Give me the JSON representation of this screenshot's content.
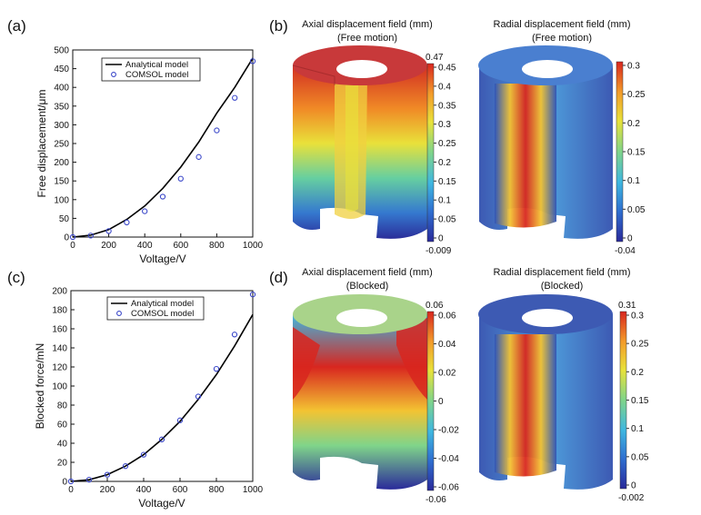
{
  "panel_labels": {
    "a": "(a)",
    "b": "(b)",
    "c": "(c)",
    "d": "(d)"
  },
  "colors": {
    "analytical": "#000000",
    "comsol": "#3a47c9",
    "top_axial_free": "#c8393a",
    "top_radial_free": "#4a7fd0",
    "top_axial_blocked": "#a9d38a",
    "top_radial_blocked": "#3d5ab3"
  },
  "colormap": [
    "#2a2a9a",
    "#2f6fd0",
    "#3fb7e0",
    "#7fd48a",
    "#e8e23a",
    "#f39c2a",
    "#d8261f"
  ],
  "fields": [
    {
      "title": "Axial displacement field (mm)",
      "subtitle": "(Free motion)",
      "max_label": "0.47",
      "min_label": "-0.009",
      "ticks": [
        "0.45",
        "0.4",
        "0.35",
        "0.3",
        "0.25",
        "0.2",
        "0.15",
        "0.1",
        "0.05",
        "0"
      ]
    },
    {
      "title": "Radial displacement field (mm)",
      "subtitle": "(Free motion)",
      "max_label": "",
      "min_label": "-0.04",
      "ticks": [
        "0.3",
        "0.25",
        "0.2",
        "0.15",
        "0.1",
        "0.05",
        "0"
      ]
    },
    {
      "title": "Axial displacement field (mm)",
      "subtitle": "(Blocked)",
      "max_label": "0.06",
      "min_label": "-0.06",
      "ticks": [
        "0.06",
        "0.04",
        "0.02",
        "0",
        "-0.02",
        "-0.04",
        "-0.06"
      ]
    },
    {
      "title": "Radial displacement field (mm)",
      "subtitle": "(Blocked)",
      "max_label": "0.31",
      "min_label": "-0.002",
      "ticks": [
        "0.3",
        "0.25",
        "0.2",
        "0.15",
        "0.1",
        "0.05",
        "0"
      ]
    }
  ],
  "chart_data": [
    {
      "type": "line",
      "title": "",
      "xlabel": "Voltage/V",
      "ylabel": "Free displacement/μm",
      "xlim": [
        0,
        1000
      ],
      "ylim": [
        0,
        500
      ],
      "xticks": [
        0,
        200,
        400,
        600,
        800,
        1000
      ],
      "yticks": [
        0,
        50,
        100,
        150,
        200,
        250,
        300,
        350,
        400,
        450,
        500
      ],
      "legend": "top-left",
      "series": [
        {
          "name": "Analytical model",
          "style": "line",
          "x": [
            0,
            100,
            200,
            300,
            400,
            500,
            600,
            700,
            800,
            900,
            1000
          ],
          "y": [
            0,
            5,
            20,
            47,
            83,
            130,
            187,
            254,
            331,
            400,
            478
          ]
        },
        {
          "name": "COMSOL model",
          "style": "markers",
          "x": [
            0,
            100,
            200,
            300,
            400,
            500,
            600,
            700,
            800,
            900,
            1000
          ],
          "y": [
            0,
            4,
            16,
            39,
            69,
            108,
            156,
            214,
            285,
            372,
            470
          ]
        }
      ]
    },
    {
      "type": "line",
      "title": "",
      "xlabel": "Voltage/V",
      "ylabel": "Blocked force/mN",
      "xlim": [
        0,
        1000
      ],
      "ylim": [
        0,
        200
      ],
      "xticks": [
        0,
        200,
        400,
        600,
        800,
        1000
      ],
      "yticks": [
        0,
        20,
        40,
        60,
        80,
        100,
        120,
        140,
        160,
        180,
        200
      ],
      "legend": "top-left",
      "series": [
        {
          "name": "Analytical model",
          "style": "line",
          "x": [
            0,
            100,
            200,
            300,
            400,
            500,
            600,
            700,
            800,
            900,
            1000
          ],
          "y": [
            0,
            1.7,
            7,
            16,
            28,
            44,
            63,
            86,
            112,
            142,
            175
          ]
        },
        {
          "name": "COMSOL model",
          "style": "markers",
          "x": [
            0,
            100,
            200,
            300,
            400,
            500,
            600,
            700,
            800,
            900,
            1000
          ],
          "y": [
            0,
            1.8,
            7,
            16,
            28,
            44,
            64,
            89,
            118,
            154,
            196
          ]
        }
      ]
    }
  ]
}
